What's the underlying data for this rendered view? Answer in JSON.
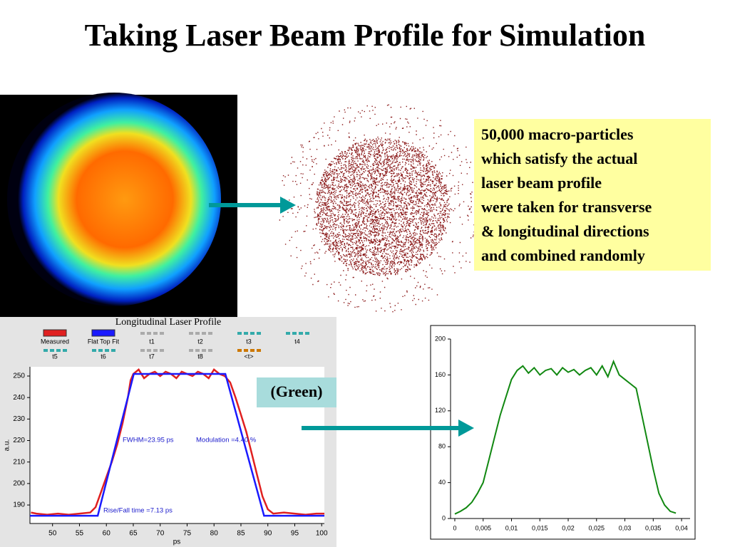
{
  "title": "Taking Laser Beam Profile for Simulation",
  "note": [
    "50,000 macro-particles",
    "which satisfy the actual",
    "laser beam profile",
    "were taken for transverse",
    "& longitudinal directions",
    "and combined randomly"
  ],
  "green_label": "(Green)",
  "chart_data": [
    {
      "type": "line",
      "title": "Longitudinal Laser Profile",
      "x_label": "ps",
      "y_label": "a.u.",
      "legend": [
        "t1",
        "t2",
        "t3",
        "t4",
        "t5",
        "t6",
        "t7",
        "t8",
        "<t>"
      ],
      "annotations": [
        "FWHM=23.95 ps",
        "Modulation =4.40 %",
        "Rise/Fall time =7.13 ps"
      ],
      "xlim": [
        45.8,
        100.5
      ],
      "xticks": [
        50,
        55,
        60,
        65,
        70,
        75,
        80,
        85,
        90,
        95,
        100
      ],
      "ylim": [
        181.4,
        254.3
      ],
      "yticks": [
        190,
        200,
        210,
        220,
        230,
        240,
        250
      ],
      "series": [
        {
          "name": "Measured",
          "color": "#e02020",
          "x": [
            46,
            47,
            49,
            51,
            53,
            55,
            57,
            58,
            59,
            60,
            61,
            62,
            63,
            64,
            64.5,
            65,
            66,
            67,
            68,
            69,
            70,
            71,
            72,
            73,
            74,
            75,
            76,
            77,
            78,
            79,
            80,
            81,
            82,
            83,
            84,
            85,
            86,
            87,
            88,
            89,
            90,
            91,
            93,
            95,
            97,
            99,
            100.5
          ],
          "values": [
            186.5,
            186,
            185.5,
            186,
            185.5,
            186,
            186.5,
            189,
            196,
            203,
            210,
            218,
            228,
            240,
            248,
            251,
            253,
            249,
            251,
            252,
            250,
            252,
            251,
            249,
            252,
            251,
            250,
            252,
            251,
            249,
            253,
            251,
            250,
            247,
            240,
            232,
            224,
            214,
            204,
            194,
            188,
            186,
            186.5,
            186,
            185.5,
            186,
            186
          ]
        },
        {
          "name": "Flat Top Fit",
          "color": "#1a1aff",
          "x": [
            45.8,
            58.4,
            65.1,
            82.1,
            89.3,
            100.5
          ],
          "values": [
            185,
            185,
            251,
            251,
            185,
            185
          ]
        }
      ]
    },
    {
      "type": "line",
      "xlim": [
        -0.00075,
        0.0415
      ],
      "xticks": [
        0,
        {
          "value": 0.005,
          "label": "0,005"
        },
        {
          "value": 0.01,
          "label": "0,01"
        },
        {
          "value": 0.015,
          "label": "0,015"
        },
        {
          "value": 0.02,
          "label": "0,02"
        },
        {
          "value": 0.025,
          "label": "0,025"
        },
        {
          "value": 0.03,
          "label": "0,03"
        },
        {
          "value": 0.035,
          "label": "0,035"
        },
        {
          "value": 0.04,
          "label": "0,04"
        }
      ],
      "ylim": [
        0,
        200
      ],
      "yticks": [
        0,
        40,
        80,
        120,
        160,
        200
      ],
      "series": [
        {
          "color": "#118811",
          "x": [
            0,
            0.001,
            0.002,
            0.003,
            0.004,
            0.005,
            0.006,
            0.007,
            0.008,
            0.009,
            0.01,
            0.011,
            0.012,
            0.013,
            0.014,
            0.015,
            0.016,
            0.017,
            0.018,
            0.019,
            0.02,
            0.021,
            0.022,
            0.023,
            0.024,
            0.025,
            0.026,
            0.027,
            0.028,
            0.029,
            0.03,
            0.031,
            0.032,
            0.033,
            0.034,
            0.035,
            0.036,
            0.037,
            0.038,
            0.039
          ],
          "values": [
            5,
            8,
            12,
            18,
            28,
            40,
            65,
            90,
            115,
            135,
            155,
            165,
            170,
            162,
            168,
            160,
            165,
            167,
            160,
            168,
            163,
            166,
            160,
            165,
            168,
            160,
            170,
            158,
            175,
            160,
            155,
            150,
            145,
            115,
            85,
            55,
            28,
            15,
            8,
            6
          ]
        }
      ]
    }
  ]
}
